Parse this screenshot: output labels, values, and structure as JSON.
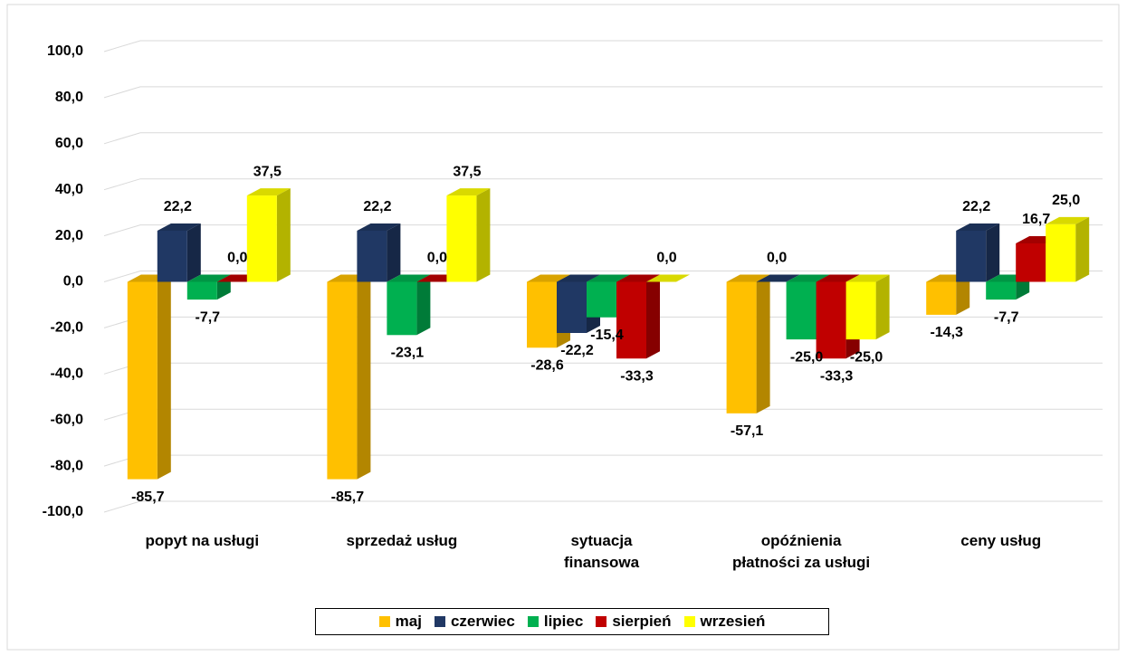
{
  "chart_data": {
    "type": "bar3d",
    "categories": [
      "popyt na usługi",
      "sprzedaż usług",
      "sytuacja\nfinansowa",
      "opóźnienia\npłatności za usługi",
      "ceny usług"
    ],
    "series": [
      {
        "name": "maj",
        "color": "#FFC000",
        "values": [
          -85.7,
          -85.7,
          -28.6,
          -57.1,
          -14.3
        ],
        "value_labels": [
          "-85,7",
          "-85,7",
          "-28,6",
          "-57,1",
          "-14,3"
        ]
      },
      {
        "name": "czerwiec",
        "color": "#203864",
        "values": [
          22.2,
          22.2,
          -22.2,
          0.0,
          22.2
        ],
        "value_labels": [
          "22,2",
          "22,2",
          "-22,2",
          "0,0",
          "22,2"
        ]
      },
      {
        "name": "lipiec",
        "color": "#00B050",
        "values": [
          -7.7,
          -23.1,
          -15.4,
          -25.0,
          -7.7
        ],
        "value_labels": [
          "-7,7",
          "-23,1",
          "-15,4",
          "-25,0",
          "-7,7"
        ]
      },
      {
        "name": "sierpień",
        "color": "#C00000",
        "values": [
          0.0,
          0.0,
          -33.3,
          -33.3,
          16.7
        ],
        "value_labels": [
          "0,0",
          "0,0",
          "-33,3",
          "-33,3",
          "16,7"
        ]
      },
      {
        "name": "wrzesień",
        "color": "#FFFF00",
        "values": [
          37.5,
          37.5,
          0.0,
          -25.0,
          25.0
        ],
        "value_labels": [
          "37,5",
          "37,5",
          "0,0",
          "-25,0",
          "25,0"
        ]
      }
    ],
    "ylim": [
      -100,
      100
    ],
    "yticks": [
      {
        "value": -100,
        "label": "-100,0"
      },
      {
        "value": -80,
        "label": "-80,0"
      },
      {
        "value": -60,
        "label": "-60,0"
      },
      {
        "value": -40,
        "label": "-40,0"
      },
      {
        "value": -20,
        "label": "-20,0"
      },
      {
        "value": 0,
        "label": "0,0"
      },
      {
        "value": 20,
        "label": "20,0"
      },
      {
        "value": 40,
        "label": "40,0"
      },
      {
        "value": 60,
        "label": "60,0"
      },
      {
        "value": 80,
        "label": "80,0"
      },
      {
        "value": 100,
        "label": "100,0"
      }
    ],
    "grid": true,
    "legend": "bottom"
  }
}
